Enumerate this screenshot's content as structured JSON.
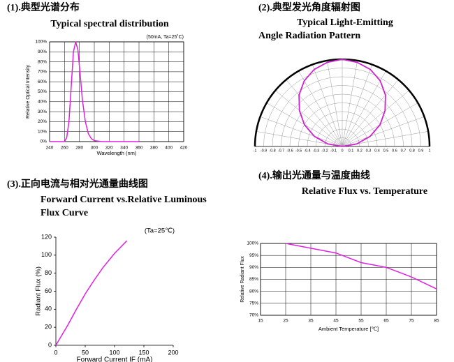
{
  "chart_data": [
    {
      "type": "line",
      "heading": "(1).典型光谱分布",
      "title_lines": [
        "Typical spectral distribution"
      ],
      "note": "(50mA, Ta=25˚C)",
      "x_label": "Wavelength (nm)",
      "y_label": "Relative Optical Intensity",
      "x": [
        240,
        260,
        263,
        266,
        269,
        272,
        275,
        278,
        281,
        284,
        288,
        292,
        296,
        300,
        310,
        360
      ],
      "series": [
        {
          "color": "#e020e0",
          "values": [
            0,
            0,
            4,
            20,
            55,
            90,
            100,
            92,
            68,
            42,
            20,
            8,
            3,
            1,
            0,
            0
          ]
        }
      ],
      "xlim": [
        240,
        420
      ],
      "xticks": [
        240,
        260,
        280,
        300,
        320,
        340,
        360,
        380,
        400,
        420
      ],
      "ylim": [
        0,
        100
      ],
      "yticks": [
        {
          "value": 0,
          "label": "0%"
        },
        {
          "value": 10,
          "label": "10%"
        },
        {
          "value": 20,
          "label": "20%"
        },
        {
          "value": 30,
          "label": "30%"
        },
        {
          "value": 40,
          "label": "40%"
        },
        {
          "value": 50,
          "label": "50%"
        },
        {
          "value": 60,
          "label": "60%"
        },
        {
          "value": 70,
          "label": "70%"
        },
        {
          "value": 80,
          "label": "80%"
        },
        {
          "value": 90,
          "label": "90%"
        },
        {
          "value": 100,
          "label": "100%"
        }
      ],
      "grid": true
    },
    {
      "type": "polar",
      "heading": "(2).典型发光角度辐射图",
      "title_lines": [
        "Typical        Light-Emitting",
        "Angle Radiation Pattern"
      ],
      "angles": [
        -90,
        -80,
        -70,
        -60,
        -50,
        -40,
        -30,
        -20,
        -10,
        0,
        10,
        20,
        30,
        40,
        50,
        60,
        70,
        80,
        90
      ],
      "values": [
        0,
        0.17,
        0.34,
        0.5,
        0.64,
        0.77,
        0.87,
        0.94,
        0.98,
        1,
        0.98,
        0.94,
        0.87,
        0.77,
        0.64,
        0.5,
        0.34,
        0.17,
        0
      ],
      "color": "#d020d0",
      "rlim": [
        0,
        1
      ],
      "rticks": [
        -1,
        -0.9,
        -0.8,
        -0.7,
        -0.6,
        -0.5,
        -0.4,
        -0.3,
        -0.2,
        -0.1,
        0,
        0.1,
        0.2,
        0.3,
        0.4,
        0.5,
        0.6,
        0.7,
        0.8,
        0.9,
        1
      ]
    },
    {
      "type": "line",
      "heading": "(3).正向电流与相对光通量曲线图",
      "title_lines": [
        "Forward Current vs.Relative Luminous",
        "Flux Curve"
      ],
      "note": "(Ta=25℃)",
      "x_label": "Forward Current IF (mA)",
      "y_label": "Radiant Flux (%)",
      "x": [
        0,
        10,
        20,
        35,
        50,
        65,
        80,
        100,
        121
      ],
      "series": [
        {
          "color": "#e020e0",
          "values": [
            0,
            11,
            22,
            40,
            57,
            72,
            86,
            102,
            116
          ]
        }
      ],
      "xlim": [
        0,
        200
      ],
      "xticks": [
        0,
        50,
        100,
        150,
        200
      ],
      "ylim": [
        0,
        120
      ],
      "yticks": [
        0,
        20,
        40,
        60,
        80,
        100,
        120
      ],
      "grid": false
    },
    {
      "type": "line",
      "heading": "(4).输出光通量与温度曲线",
      "title_lines": [
        "Relative Flux vs. Temperature"
      ],
      "x_label": "Ambient Temperature [℃]",
      "y_label": "Relative Radiant Flux",
      "x": [
        25,
        35,
        45,
        55,
        65,
        75,
        85
      ],
      "series": [
        {
          "color": "#e020e0",
          "values": [
            100,
            98,
            96,
            92,
            90,
            86,
            81
          ]
        }
      ],
      "xlim": [
        15,
        85
      ],
      "xticks": [
        15,
        25,
        35,
        45,
        55,
        65,
        75,
        85
      ],
      "ylim": [
        70,
        100
      ],
      "yticks": [
        {
          "value": 70,
          "label": "70%"
        },
        {
          "value": 75,
          "label": "75%"
        },
        {
          "value": 80,
          "label": "80%"
        },
        {
          "value": 85,
          "label": "85%"
        },
        {
          "value": 90,
          "label": "90%"
        },
        {
          "value": 95,
          "label": "95%"
        },
        {
          "value": 100,
          "label": "100%"
        }
      ],
      "grid": true
    }
  ]
}
